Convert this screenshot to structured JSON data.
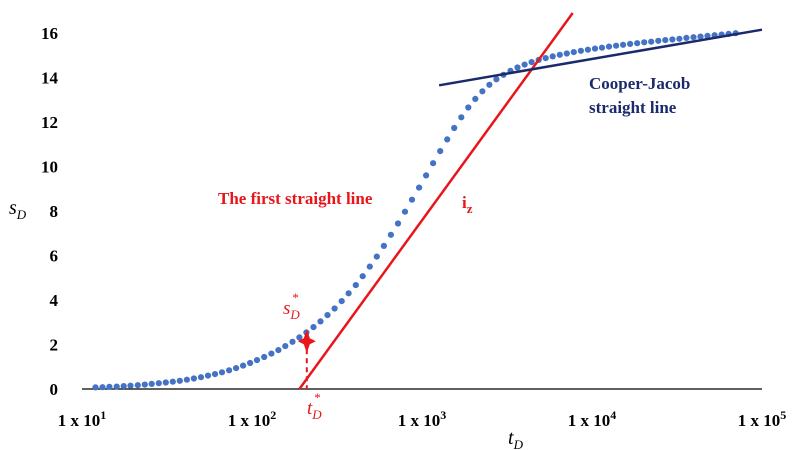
{
  "chart_data": {
    "type": "scatter",
    "x_scale": "log",
    "xlim": [
      10,
      100000
    ],
    "ylim": [
      0,
      16
    ],
    "x_ticks": [
      {
        "value": 10,
        "label": "1 x 10",
        "exp": "1"
      },
      {
        "value": 100,
        "label": "1 x 10",
        "exp": "2"
      },
      {
        "value": 1000,
        "label": "1 x 10",
        "exp": "3"
      },
      {
        "value": 10000,
        "label": "1 x 10",
        "exp": "4"
      },
      {
        "value": 100000,
        "label": "1 x 10",
        "exp": "5"
      }
    ],
    "y_ticks": [
      "0",
      "2",
      "4",
      "6",
      "8",
      "10",
      "12",
      "14",
      "16"
    ],
    "xlabel": {
      "main": "t",
      "sub": "D"
    },
    "ylabel": {
      "main": "s",
      "sub": "D"
    },
    "grid": false,
    "legend": "none",
    "colors": {
      "points": "#4472c4",
      "first_line": "#e8161b",
      "cooper_jacob": "#1b2a6b"
    },
    "series": [
      {
        "type": "scatter",
        "x": [
          12,
          13.2,
          14.5,
          16,
          17.6,
          19.3,
          21.3,
          23.4,
          25.7,
          28.3,
          31.1,
          34.2,
          37.6,
          41.4,
          45.5,
          50.1,
          55.1,
          60.6,
          66.6,
          73.3,
          80.6,
          88.7,
          97.5,
          107,
          118,
          130,
          143,
          157,
          173,
          190,
          209,
          230,
          253,
          278,
          306,
          337,
          370,
          408,
          448,
          493,
          542,
          597,
          656,
          722,
          794,
          873,
          961,
          1057,
          1162,
          1279,
          1406,
          1547,
          1702,
          1872,
          2059,
          2265,
          2491,
          2741,
          3015,
          3316,
          3648,
          4012,
          4414,
          4855,
          5341,
          5875,
          6462,
          7108,
          7819,
          8601,
          9461,
          10408,
          11448,
          12593,
          13852,
          15238,
          16761,
          18437,
          20281,
          22309,
          24540,
          26994,
          29694,
          32663,
          35930,
          39522,
          43475,
          47822,
          52604,
          57865,
          63651,
          70016
        ],
        "y": [
          0.07,
          0.08,
          0.1,
          0.11,
          0.13,
          0.15,
          0.17,
          0.2,
          0.23,
          0.26,
          0.29,
          0.33,
          0.37,
          0.42,
          0.47,
          0.53,
          0.6,
          0.67,
          0.75,
          0.84,
          0.94,
          1.05,
          1.17,
          1.3,
          1.44,
          1.59,
          1.75,
          1.93,
          2.12,
          2.32,
          2.54,
          2.78,
          3.04,
          3.32,
          3.62,
          3.95,
          4.3,
          4.67,
          5.07,
          5.5,
          5.95,
          6.43,
          6.93,
          7.44,
          7.97,
          8.51,
          9.05,
          9.6,
          10.15,
          10.69,
          11.22,
          11.73,
          12.21,
          12.65,
          13.04,
          13.38,
          13.67,
          13.92,
          14.12,
          14.3,
          14.45,
          14.58,
          14.69,
          14.79,
          14.87,
          14.95,
          15.02,
          15.08,
          15.14,
          15.2,
          15.25,
          15.3,
          15.34,
          15.39,
          15.43,
          15.47,
          15.51,
          15.54,
          15.58,
          15.61,
          15.65,
          15.68,
          15.71,
          15.74,
          15.78,
          15.81,
          15.84,
          15.87,
          15.9,
          15.93,
          15.96,
          15.99
        ]
      },
      {
        "type": "line",
        "x": [
          190,
          7700
        ],
        "y": [
          0,
          16.9
        ]
      },
      {
        "type": "line",
        "x": [
          1260,
          100000
        ],
        "y": [
          13.65,
          16.15
        ]
      }
    ],
    "annotations": {
      "first_line": "The first straight line",
      "iz_main": "i",
      "iz_sub": "z",
      "cooper_line1": "Cooper-Jacob",
      "cooper_line2": "straight line",
      "sd_star_main": "s",
      "sd_star_sub": "D",
      "sd_star_sup": "*",
      "td_star_main": "t",
      "td_star_sub": "D",
      "td_star_sup": "*"
    },
    "marker": {
      "x": 210,
      "y": 2.15
    }
  }
}
